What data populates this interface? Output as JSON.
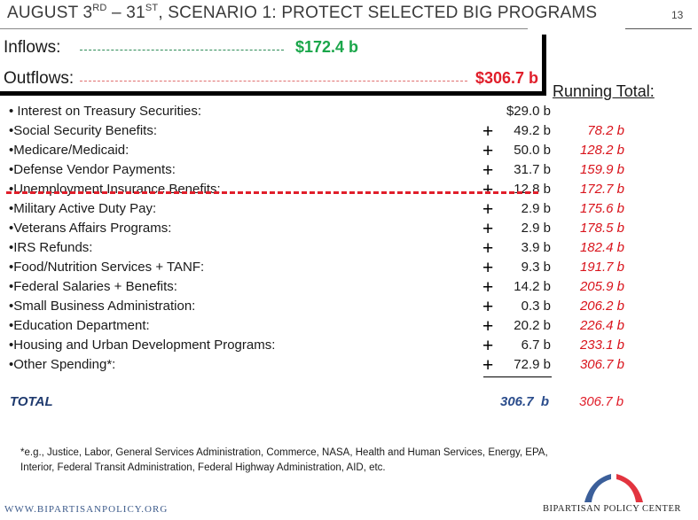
{
  "header": {
    "title_pre": "AUGUST 3",
    "title_sup1": "RD",
    "title_mid": " – 31",
    "title_sup2": "ST",
    "title_post": ", SCENARIO 1: PROTECT SELECTED BIG PROGRAMS",
    "page_number": "13"
  },
  "flows": {
    "inflows_label": "Inflows:",
    "inflows_value": "$172.4 b",
    "outflows_label": "Outflows:",
    "outflows_value": "$306.7 b",
    "running_total_label": "Running Total:"
  },
  "items": [
    {
      "label": "• Interest on Treasury Securities:",
      "plus": "",
      "amount": "$29.0 b",
      "running": ""
    },
    {
      "label": "•Social Security Benefits:",
      "plus": "+",
      "amount": "49.2 b",
      "running": "78.2 b"
    },
    {
      "label": "•Medicare/Medicaid:",
      "plus": "+",
      "amount": "50.0 b",
      "running": "128.2 b"
    },
    {
      "label": "•Defense Vendor Payments:",
      "plus": "+",
      "amount": "31.7 b",
      "running": "159.9 b"
    },
    {
      "label": "•Unemployment Insurance Benefits:",
      "plus": "+",
      "amount": "12.8 b",
      "running": "172.7 b"
    },
    {
      "label": "•Military Active Duty Pay:",
      "plus": "+",
      "amount": "2.9 b",
      "running": "175.6 b"
    },
    {
      "label": "•Veterans Affairs Programs:",
      "plus": "+",
      "amount": "2.9 b",
      "running": "178.5 b"
    },
    {
      "label": "•IRS Refunds:",
      "plus": "+",
      "amount": "3.9 b",
      "running": "182.4 b"
    },
    {
      "label": "•Food/Nutrition Services + TANF:",
      "plus": "+",
      "amount": "9.3 b",
      "running": "191.7 b"
    },
    {
      "label": "•Federal Salaries + Benefits:",
      "plus": "+",
      "amount": "14.2 b",
      "running": "205.9 b"
    },
    {
      "label": "•Small Business Administration:",
      "plus": "+",
      "amount": "0.3 b",
      "running": "206.2 b"
    },
    {
      "label": "•Education Department:",
      "plus": "+",
      "amount": "20.2 b",
      "running": "226.4 b"
    },
    {
      "label": "•Housing and Urban Development Programs:",
      "plus": "+",
      "amount": "6.7 b",
      "running": "233.1 b"
    },
    {
      "label": "•Other Spending*:",
      "plus": "+",
      "amount": "72.9 b",
      "running": "306.7 b"
    }
  ],
  "total": {
    "label": "TOTAL",
    "amount": "306.7  b",
    "running": "306.7 b"
  },
  "footnote": {
    "line1": "*e.g., Justice, Labor, General Services Administration, Commerce, NASA, Health and Human Services, Energy, EPA,",
    "line2": "Interior, Federal Transit Administration, Federal Highway Administration, AID, etc."
  },
  "footer": {
    "website": "WWW.BIPARTISANPOLICY.ORG",
    "org_name": "BIPARTISAN POLICY CENTER"
  },
  "colors": {
    "inflow": "#1aa64a",
    "outflow": "#e01e2a",
    "running": "#d9141c",
    "total_blue": "#2b4d8c",
    "logo_blue": "#3b5f9a",
    "logo_red": "#e2343f"
  }
}
